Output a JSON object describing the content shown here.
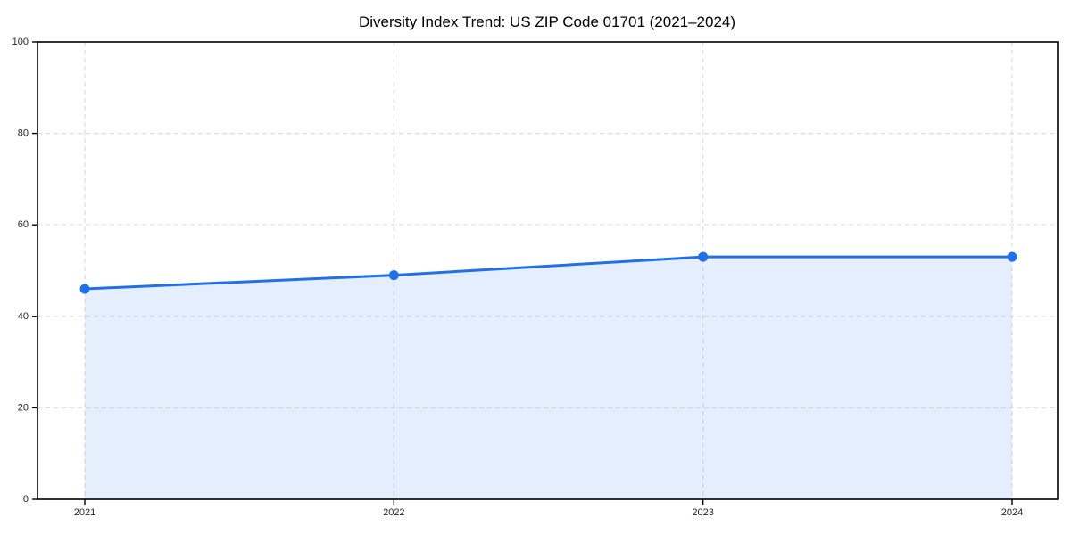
{
  "chart_data": {
    "type": "area",
    "title": "Diversity Index Trend: US ZIP Code 01701 (2021–2024)",
    "categories": [
      "2021",
      "2022",
      "2023",
      "2024"
    ],
    "series": [
      {
        "name": "Diversity Index",
        "values": [
          46,
          49,
          53,
          53
        ]
      }
    ],
    "xlabel": "",
    "ylabel": "",
    "ylim": [
      0,
      100
    ],
    "yticks": [
      0,
      20,
      40,
      60,
      80,
      100
    ],
    "grid": "dashed-both-axes",
    "legend": "none",
    "colors": {
      "line": "#2170e8",
      "marker": "#2170e8",
      "area_fill": "#2170e8",
      "area_fill_opacity": 0.12,
      "grid": "#dddddd",
      "spine": "#000000",
      "tick": "#000000",
      "tick_label": "#262626",
      "title": "#000000",
      "background": "#ffffff"
    }
  }
}
